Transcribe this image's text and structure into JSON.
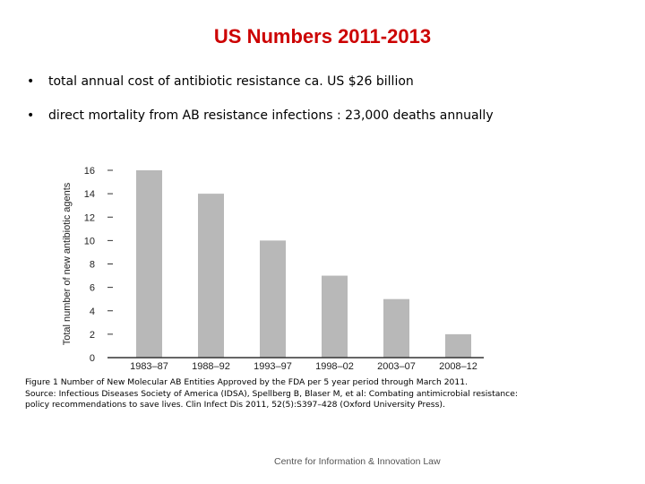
{
  "slide": {
    "title": "US Numbers 2011-2013",
    "title_color": "#cc0000",
    "bullets": [
      "total annual cost of antibiotic resistance ca. US $26 billion",
      "direct mortality from AB resistance infections :  23,000 deaths annually"
    ],
    "bullet_glyph": "•"
  },
  "caption": {
    "line1": "Figure 1 Number of New Molecular AB Entities Approved by the FDA per 5 year period through March 2011.",
    "line2": "Source: Infectious Diseases Society of America (IDSA), Spellberg B, Blaser M, et al: Combating antimicrobial resistance:",
    "line3": "policy recommendations to save lives. Clin Infect Dis 2011, 52(5):S397–428 (Oxford University Press)."
  },
  "footer": "Centre for Information & Innovation Law",
  "chart_data": {
    "type": "bar",
    "categories": [
      "1983–87",
      "1988–92",
      "1993–97",
      "1998–02",
      "2003–07",
      "2008–12"
    ],
    "values": [
      16,
      14,
      10,
      7,
      5,
      2
    ],
    "ylabel": "Total number of new antibiotic agents",
    "xlabel": "",
    "ylim": [
      0,
      16
    ],
    "yticks": [
      0,
      2,
      4,
      6,
      8,
      10,
      12,
      14,
      16
    ],
    "grid": false,
    "bar_color": "#b8b8b8",
    "axis_color": "#333333"
  }
}
